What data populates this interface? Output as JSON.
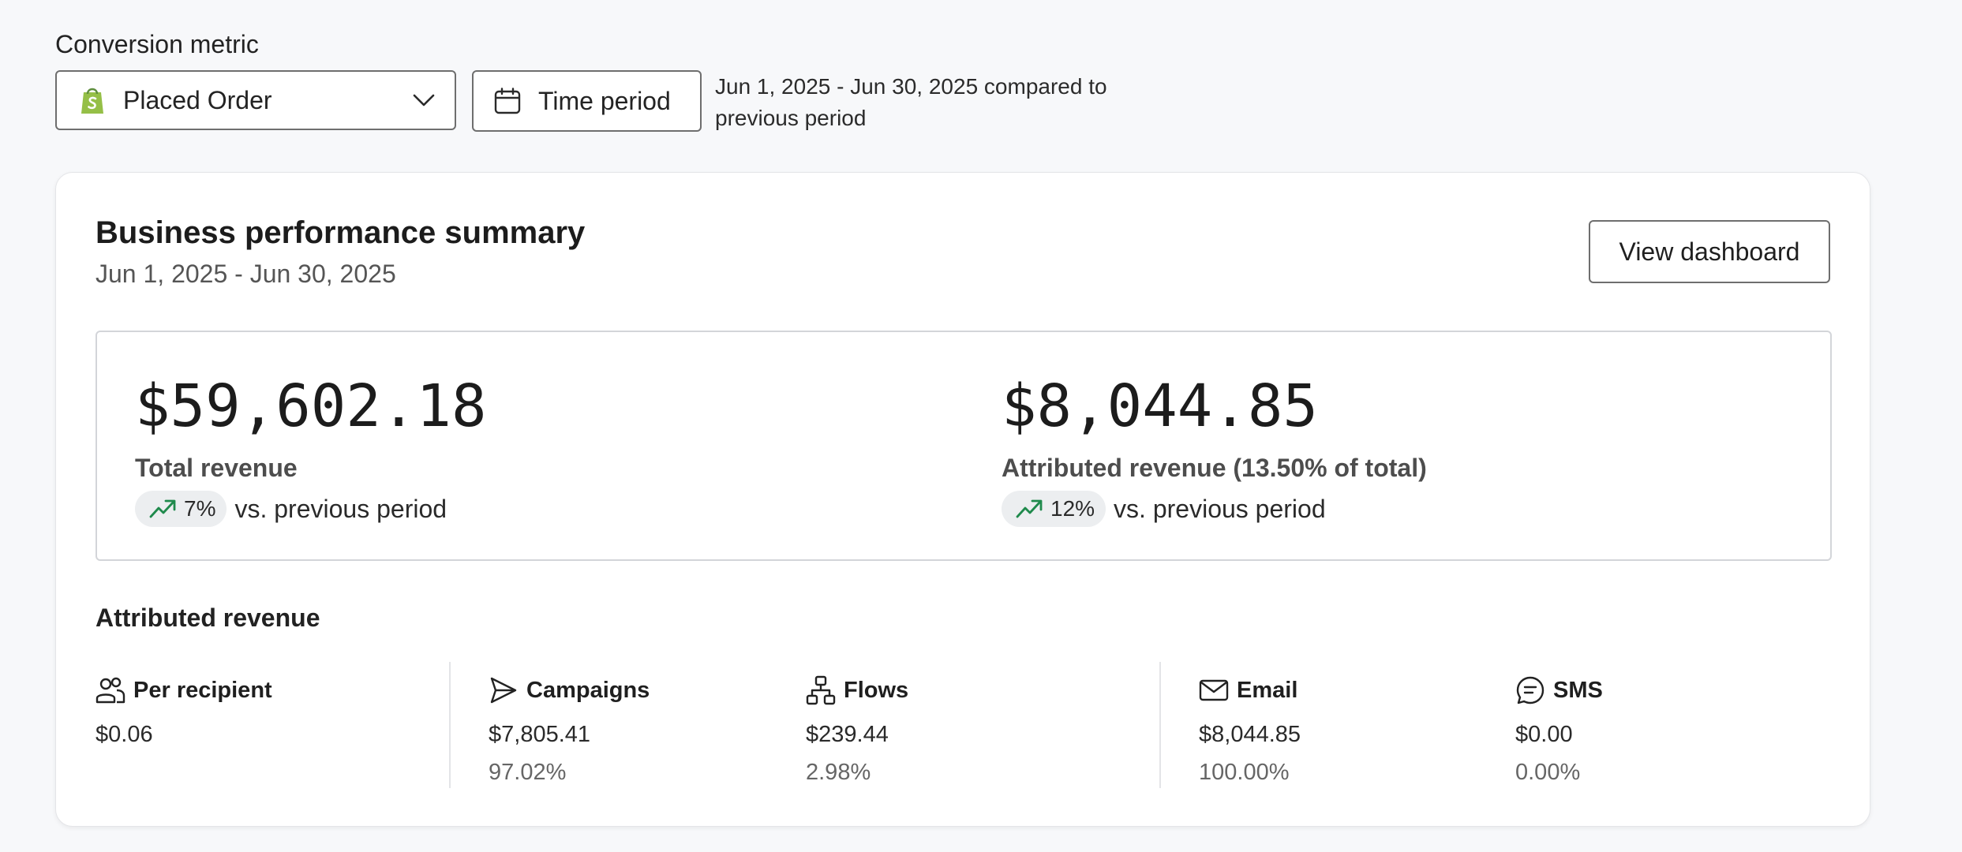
{
  "conversion_metric": {
    "label": "Conversion metric",
    "selected": "Placed Order",
    "icon": "shopify-bag-icon",
    "brand_color": "#95bf47"
  },
  "time_period": {
    "button_label": "Time period",
    "description": "Jun 1, 2025 - Jun 30, 2025 compared to previous period"
  },
  "summary": {
    "title": "Business performance summary",
    "date_range": "Jun 1, 2025 - Jun 30, 2025",
    "view_dashboard_label": "View dashboard",
    "total_revenue": {
      "value": "$59,602.18",
      "label": "Total revenue",
      "change": "7%",
      "change_direction": "up",
      "compare_text": "vs. previous period"
    },
    "attributed_revenue": {
      "value": "$8,044.85",
      "label": "Attributed revenue (13.50% of total)",
      "change": "12%",
      "change_direction": "up",
      "compare_text": "vs. previous period"
    },
    "trend_color": "#1f8a4c"
  },
  "attributed_revenue": {
    "heading": "Attributed revenue",
    "stats": [
      {
        "name": "Per recipient",
        "icon": "users-icon",
        "value": "$0.06",
        "percent": ""
      },
      {
        "name": "Campaigns",
        "icon": "send-icon",
        "value": "$7,805.41",
        "percent": "97.02%"
      },
      {
        "name": "Flows",
        "icon": "flow-icon",
        "value": "$239.44",
        "percent": "2.98%"
      },
      {
        "name": "Email",
        "icon": "mail-icon",
        "value": "$8,044.85",
        "percent": "100.00%"
      },
      {
        "name": "SMS",
        "icon": "sms-icon",
        "value": "$0.00",
        "percent": "0.00%"
      }
    ]
  }
}
